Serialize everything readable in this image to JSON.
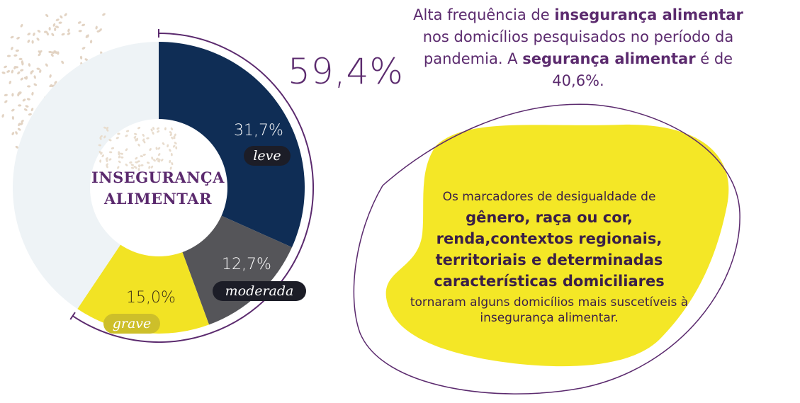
{
  "chart_data": {
    "type": "pie",
    "title": "INSEGURANÇA ALIMENTAR",
    "slices": [
      {
        "label": "leve",
        "value": 31.7,
        "value_label": "31,7%",
        "color": "#0f2d55"
      },
      {
        "label": "moderada",
        "value": 12.7,
        "value_label": "12,7%",
        "color": "#555559"
      },
      {
        "label": "grave",
        "value": 15.0,
        "value_label": "15,0%",
        "color": "#f2e324"
      },
      {
        "label": "",
        "value": 40.6,
        "value_label": "",
        "color": "#eef3f6"
      }
    ],
    "total": {
      "value": 59.4,
      "label": "59,4%"
    }
  },
  "center": {
    "line1": "INSEGURANÇA",
    "line2": "ALIMENTAR"
  },
  "headline": {
    "p1": "Alta frequência de ",
    "b1": "insegurança alimentar",
    "p2": " nos domicílios pesquisados no período da pandemia. A ",
    "b2": "segurança alimentar",
    "p3": " é de 40,6%."
  },
  "blob": {
    "intro": "Os marcadores de desigualdade de",
    "bold": "gênero, raça ou cor, renda,contextos regionais, territoriais e determinadas características domiciliares",
    "outro": "tornaram alguns domicílios mais suscetíveis à insegurança alimentar."
  },
  "colors": {
    "purple": "#5b2a6e",
    "navy": "#0f2d55",
    "gray": "#555559",
    "yellow": "#f2e324",
    "light": "#eef3f6"
  }
}
